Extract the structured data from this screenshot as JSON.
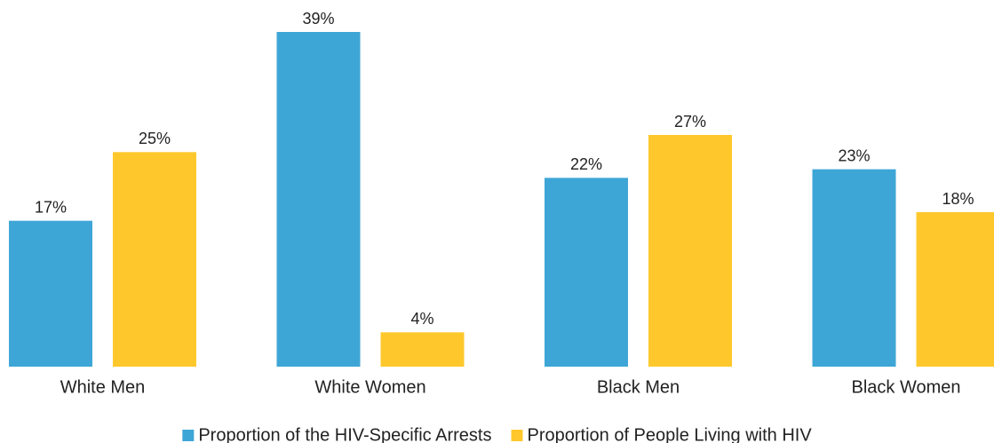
{
  "chart_data": {
    "type": "bar",
    "categories": [
      "White Men",
      "White Women",
      "Black Men",
      "Black Women"
    ],
    "series": [
      {
        "name": "Proportion of the HIV-Specific Arrests",
        "color": "#3ea6d6",
        "values": [
          17,
          39,
          22,
          23
        ],
        "value_labels": [
          "17%",
          "39%",
          "22%",
          "23%"
        ]
      },
      {
        "name": "Proportion of People Living with HIV",
        "color": "#fec82c",
        "values": [
          25,
          4,
          27,
          18
        ],
        "value_labels": [
          "25%",
          "4%",
          "27%",
          "18%"
        ]
      }
    ],
    "legend": "bottom"
  }
}
